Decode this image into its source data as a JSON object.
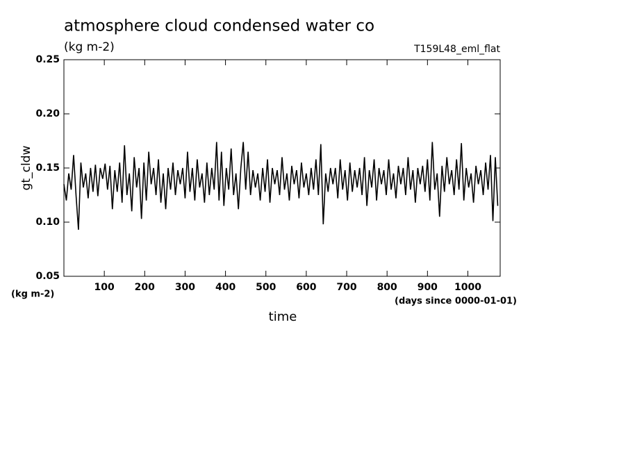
{
  "chart_data": {
    "type": "line",
    "title": "atmosphere cloud condensed water co",
    "subtitle": "(kg m-2)",
    "run_label": "T159L48_eml_flat",
    "y_label": "gt_cldw",
    "y_unit": "(kg m-2)",
    "x_label": "time",
    "x_unit": "(days since 0000-01-01)",
    "xlim": [
      0,
      1080
    ],
    "ylim": [
      0.05,
      0.25
    ],
    "xticks": [
      100,
      200,
      300,
      400,
      500,
      600,
      700,
      800,
      900,
      1000
    ],
    "yticks": [
      {
        "value": 0.05,
        "label": "0.05"
      },
      {
        "value": 0.1,
        "label": "0.10"
      },
      0.15,
      {
        "value": 0.2,
        "label": "0.20"
      },
      0.25
    ],
    "color": "#000000",
    "x": [
      0,
      6,
      12,
      18,
      24,
      30,
      36,
      42,
      48,
      54,
      60,
      66,
      72,
      78,
      84,
      90,
      96,
      102,
      108,
      114,
      120,
      126,
      132,
      138,
      144,
      150,
      156,
      162,
      168,
      174,
      180,
      186,
      192,
      198,
      204,
      210,
      216,
      222,
      228,
      234,
      240,
      246,
      252,
      258,
      264,
      270,
      276,
      282,
      288,
      294,
      300,
      306,
      312,
      318,
      324,
      330,
      336,
      342,
      348,
      354,
      360,
      366,
      372,
      378,
      384,
      390,
      396,
      402,
      408,
      414,
      420,
      426,
      432,
      438,
      444,
      450,
      456,
      462,
      468,
      474,
      480,
      486,
      492,
      498,
      504,
      510,
      516,
      522,
      528,
      534,
      540,
      546,
      552,
      558,
      564,
      570,
      576,
      582,
      588,
      594,
      600,
      606,
      612,
      618,
      624,
      630,
      636,
      642,
      648,
      654,
      660,
      666,
      672,
      678,
      684,
      690,
      696,
      702,
      708,
      714,
      720,
      726,
      732,
      738,
      744,
      750,
      756,
      762,
      768,
      774,
      780,
      786,
      792,
      798,
      804,
      810,
      816,
      822,
      828,
      834,
      840,
      846,
      852,
      858,
      864,
      870,
      876,
      882,
      888,
      894,
      900,
      906,
      912,
      918,
      924,
      930,
      936,
      942,
      948,
      954,
      960,
      966,
      972,
      978,
      984,
      990,
      996,
      1002,
      1008,
      1014,
      1020,
      1026,
      1032,
      1038,
      1044,
      1050,
      1056,
      1062,
      1068,
      1074
    ],
    "values": [
      0.135,
      0.12,
      0.145,
      0.13,
      0.162,
      0.125,
      0.093,
      0.155,
      0.132,
      0.145,
      0.122,
      0.15,
      0.128,
      0.153,
      0.124,
      0.15,
      0.14,
      0.154,
      0.13,
      0.152,
      0.112,
      0.148,
      0.128,
      0.155,
      0.118,
      0.171,
      0.125,
      0.145,
      0.11,
      0.16,
      0.132,
      0.15,
      0.103,
      0.155,
      0.12,
      0.165,
      0.135,
      0.15,
      0.125,
      0.158,
      0.118,
      0.145,
      0.112,
      0.15,
      0.13,
      0.155,
      0.125,
      0.148,
      0.135,
      0.15,
      0.122,
      0.165,
      0.128,
      0.15,
      0.12,
      0.158,
      0.132,
      0.145,
      0.118,
      0.155,
      0.125,
      0.15,
      0.13,
      0.174,
      0.12,
      0.165,
      0.115,
      0.15,
      0.13,
      0.168,
      0.125,
      0.145,
      0.112,
      0.15,
      0.174,
      0.13,
      0.165,
      0.125,
      0.148,
      0.132,
      0.145,
      0.12,
      0.15,
      0.128,
      0.158,
      0.118,
      0.15,
      0.135,
      0.148,
      0.125,
      0.16,
      0.13,
      0.145,
      0.12,
      0.152,
      0.135,
      0.148,
      0.122,
      0.155,
      0.132,
      0.145,
      0.125,
      0.15,
      0.13,
      0.158,
      0.125,
      0.172,
      0.098,
      0.145,
      0.128,
      0.15,
      0.135,
      0.15,
      0.122,
      0.158,
      0.13,
      0.148,
      0.12,
      0.155,
      0.128,
      0.148,
      0.132,
      0.15,
      0.125,
      0.16,
      0.115,
      0.148,
      0.132,
      0.158,
      0.12,
      0.15,
      0.135,
      0.148,
      0.125,
      0.158,
      0.13,
      0.145,
      0.122,
      0.152,
      0.135,
      0.15,
      0.125,
      0.16,
      0.13,
      0.148,
      0.118,
      0.15,
      0.135,
      0.152,
      0.128,
      0.158,
      0.12,
      0.174,
      0.13,
      0.145,
      0.105,
      0.152,
      0.128,
      0.16,
      0.135,
      0.148,
      0.125,
      0.158,
      0.13,
      0.173,
      0.12,
      0.15,
      0.132,
      0.145,
      0.118,
      0.152,
      0.135,
      0.148,
      0.125,
      0.155,
      0.13,
      0.162,
      0.101,
      0.16,
      0.115
    ]
  }
}
